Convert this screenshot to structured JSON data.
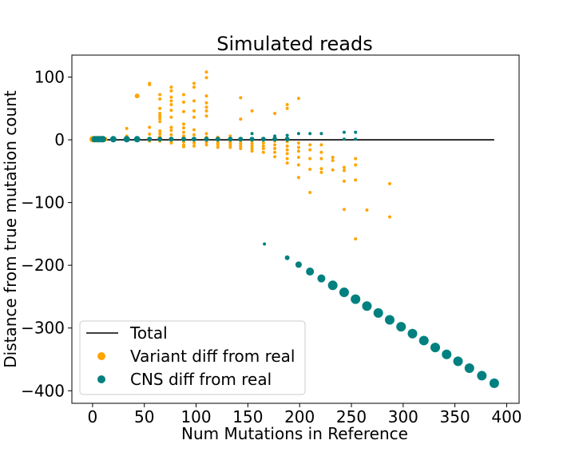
{
  "chart_data": {
    "type": "scatter",
    "title": "Simulated reads",
    "xlabel": "Num Mutations in Reference",
    "ylabel": "Distance from true mutation count",
    "xlim": [
      -20,
      412
    ],
    "ylim": [
      -420,
      135
    ],
    "xticks": [
      0,
      50,
      100,
      150,
      200,
      250,
      300,
      350,
      400
    ],
    "yticks": [
      100,
      0,
      -100,
      -200,
      -300,
      -400
    ],
    "grid": false,
    "legend_position": "lower-left",
    "colors": {
      "total": "#000000",
      "variant": "#ffa500",
      "cns": "#008080"
    },
    "series": [
      {
        "name": "Total",
        "kind": "line",
        "x": [
          0,
          388
        ],
        "values": [
          0,
          0
        ]
      },
      {
        "name": "Variant diff from real",
        "kind": "scatter",
        "points": [
          [
            0,
            1,
            4
          ],
          [
            2,
            1,
            4
          ],
          [
            4,
            1,
            4
          ],
          [
            6,
            1,
            4
          ],
          [
            8,
            1,
            4
          ],
          [
            10,
            1,
            4
          ],
          [
            12,
            1,
            3
          ],
          [
            20,
            1,
            3
          ],
          [
            33,
            1,
            3
          ],
          [
            43,
            1,
            3
          ],
          [
            55,
            1,
            3
          ],
          [
            65,
            1,
            3
          ],
          [
            76,
            1,
            3
          ],
          [
            88,
            1,
            3
          ],
          [
            98,
            1,
            3
          ],
          [
            110,
            1,
            3
          ],
          [
            121,
            1,
            3
          ],
          [
            33,
            -1,
            2
          ],
          [
            33,
            6,
            2
          ],
          [
            33,
            18,
            2
          ],
          [
            43,
            70,
            3
          ],
          [
            43,
            69,
            2
          ],
          [
            55,
            90,
            2
          ],
          [
            55,
            88,
            2
          ],
          [
            55,
            20,
            2
          ],
          [
            55,
            9,
            2
          ],
          [
            55,
            -2,
            2
          ],
          [
            65,
            72,
            2
          ],
          [
            65,
            65,
            2
          ],
          [
            65,
            50,
            2
          ],
          [
            65,
            42,
            2
          ],
          [
            65,
            38,
            2
          ],
          [
            65,
            34,
            2
          ],
          [
            65,
            29,
            2
          ],
          [
            65,
            14,
            2
          ],
          [
            65,
            10,
            2
          ],
          [
            65,
            5,
            2
          ],
          [
            65,
            2,
            2
          ],
          [
            65,
            -2,
            2
          ],
          [
            76,
            84,
            2
          ],
          [
            76,
            78,
            2
          ],
          [
            76,
            68,
            2
          ],
          [
            76,
            62,
            2
          ],
          [
            76,
            56,
            2
          ],
          [
            76,
            47,
            2
          ],
          [
            76,
            36,
            2
          ],
          [
            76,
            20,
            2
          ],
          [
            76,
            15,
            2
          ],
          [
            76,
            8,
            2
          ],
          [
            76,
            -2,
            2
          ],
          [
            76,
            -5,
            2
          ],
          [
            88,
            72,
            2
          ],
          [
            88,
            60,
            2
          ],
          [
            88,
            45,
            2
          ],
          [
            88,
            25,
            2
          ],
          [
            88,
            19,
            2
          ],
          [
            88,
            12,
            2
          ],
          [
            88,
            6,
            2
          ],
          [
            88,
            -3,
            2
          ],
          [
            88,
            -8,
            2
          ],
          [
            88,
            -11,
            2
          ],
          [
            98,
            90,
            2
          ],
          [
            98,
            84,
            2
          ],
          [
            98,
            62,
            2
          ],
          [
            98,
            46,
            2
          ],
          [
            98,
            36,
            2
          ],
          [
            98,
            16,
            2
          ],
          [
            98,
            8,
            2
          ],
          [
            98,
            0,
            2
          ],
          [
            98,
            -5,
            2
          ],
          [
            98,
            -10,
            2
          ],
          [
            110,
            108,
            2
          ],
          [
            110,
            99,
            2
          ],
          [
            110,
            70,
            2
          ],
          [
            110,
            59,
            2
          ],
          [
            110,
            52,
            2
          ],
          [
            110,
            46,
            2
          ],
          [
            110,
            38,
            2
          ],
          [
            110,
            10,
            2
          ],
          [
            110,
            4,
            2
          ],
          [
            110,
            -4,
            2
          ],
          [
            110,
            -8,
            2
          ],
          [
            121,
            -1,
            2
          ],
          [
            121,
            -5,
            2
          ],
          [
            121,
            -8,
            2
          ],
          [
            121,
            -12,
            2
          ],
          [
            121,
            4,
            2
          ],
          [
            133,
            6,
            2
          ],
          [
            133,
            2,
            2
          ],
          [
            133,
            -2,
            2
          ],
          [
            133,
            -5,
            2
          ],
          [
            133,
            -8,
            2
          ],
          [
            133,
            -12,
            2
          ],
          [
            143,
            67,
            2
          ],
          [
            143,
            33,
            2
          ],
          [
            143,
            -2,
            2
          ],
          [
            143,
            -6,
            2
          ],
          [
            143,
            -10,
            2
          ],
          [
            143,
            -14,
            2
          ],
          [
            154,
            46,
            2
          ],
          [
            154,
            -2,
            2
          ],
          [
            154,
            -6,
            2
          ],
          [
            154,
            -10,
            2
          ],
          [
            154,
            -14,
            2
          ],
          [
            154,
            -18,
            2
          ],
          [
            165,
            1,
            2
          ],
          [
            165,
            -5,
            2
          ],
          [
            165,
            -10,
            2
          ],
          [
            165,
            -14,
            2
          ],
          [
            165,
            -20,
            2
          ],
          [
            176,
            42,
            2
          ],
          [
            176,
            4,
            2
          ],
          [
            176,
            -2,
            2
          ],
          [
            176,
            -8,
            2
          ],
          [
            176,
            -14,
            2
          ],
          [
            176,
            -20,
            2
          ],
          [
            176,
            -27,
            2
          ],
          [
            188,
            56,
            2
          ],
          [
            188,
            50,
            2
          ],
          [
            188,
            -3,
            2
          ],
          [
            188,
            -10,
            2
          ],
          [
            188,
            -16,
            2
          ],
          [
            188,
            -22,
            2
          ],
          [
            188,
            -30,
            2
          ],
          [
            188,
            -37,
            2
          ],
          [
            199,
            66,
            2
          ],
          [
            199,
            -5,
            2
          ],
          [
            199,
            -12,
            2
          ],
          [
            199,
            -18,
            2
          ],
          [
            199,
            -28,
            2
          ],
          [
            199,
            -40,
            2
          ],
          [
            199,
            -60,
            2
          ],
          [
            210,
            -8,
            2
          ],
          [
            210,
            -16,
            2
          ],
          [
            210,
            -30,
            2
          ],
          [
            210,
            -47,
            2
          ],
          [
            210,
            -84,
            2
          ],
          [
            221,
            -8,
            2
          ],
          [
            221,
            -20,
            2
          ],
          [
            221,
            -30,
            2
          ],
          [
            221,
            -46,
            2
          ],
          [
            221,
            -52,
            2
          ],
          [
            232,
            -28,
            2
          ],
          [
            232,
            -33,
            2
          ],
          [
            232,
            -48,
            2
          ],
          [
            243,
            -44,
            2
          ],
          [
            243,
            -49,
            2
          ],
          [
            243,
            -66,
            2
          ],
          [
            243,
            -111,
            2
          ],
          [
            254,
            -30,
            2
          ],
          [
            254,
            -40,
            2
          ],
          [
            254,
            -64,
            2
          ],
          [
            254,
            -158,
            2
          ],
          [
            265,
            -112,
            2
          ],
          [
            287,
            -70,
            2
          ],
          [
            287,
            -123,
            2
          ]
        ]
      },
      {
        "name": "CNS diff from real",
        "kind": "scatter",
        "points": [
          [
            2,
            1,
            4
          ],
          [
            5,
            1,
            4
          ],
          [
            8,
            1,
            4
          ],
          [
            10,
            1,
            4
          ],
          [
            20,
            1,
            4
          ],
          [
            33,
            1,
            4
          ],
          [
            43,
            1,
            4
          ],
          [
            55,
            1,
            3
          ],
          [
            65,
            1,
            3
          ],
          [
            76,
            1,
            3
          ],
          [
            88,
            1,
            3
          ],
          [
            98,
            1,
            3
          ],
          [
            110,
            1,
            3
          ],
          [
            121,
            1,
            3
          ],
          [
            133,
            1,
            3
          ],
          [
            143,
            1,
            3
          ],
          [
            154,
            1,
            3
          ],
          [
            165,
            1,
            3
          ],
          [
            176,
            1,
            3
          ],
          [
            188,
            1,
            3
          ],
          [
            154,
            10,
            2
          ],
          [
            176,
            6,
            2
          ],
          [
            188,
            7,
            2
          ],
          [
            199,
            10,
            2
          ],
          [
            210,
            10,
            2
          ],
          [
            221,
            10,
            2
          ],
          [
            243,
            12,
            2
          ],
          [
            254,
            12,
            2
          ],
          [
            243,
            1,
            2
          ],
          [
            254,
            1,
            2
          ],
          [
            166,
            -166,
            2
          ],
          [
            188,
            -188,
            3
          ],
          [
            199,
            -199,
            4
          ],
          [
            210,
            -210,
            5
          ],
          [
            221,
            -221,
            5
          ],
          [
            232,
            -232,
            6
          ],
          [
            243,
            -243,
            6
          ],
          [
            254,
            -254,
            6
          ],
          [
            265,
            -265,
            6
          ],
          [
            276,
            -276,
            6
          ],
          [
            287,
            -287,
            6
          ],
          [
            298,
            -298,
            6
          ],
          [
            309,
            -309,
            6
          ],
          [
            320,
            -320,
            6
          ],
          [
            331,
            -331,
            6
          ],
          [
            342,
            -342,
            6
          ],
          [
            353,
            -353,
            6
          ],
          [
            364,
            -364,
            6
          ],
          [
            376,
            -376,
            6
          ],
          [
            388,
            -388,
            6
          ]
        ]
      }
    ]
  }
}
